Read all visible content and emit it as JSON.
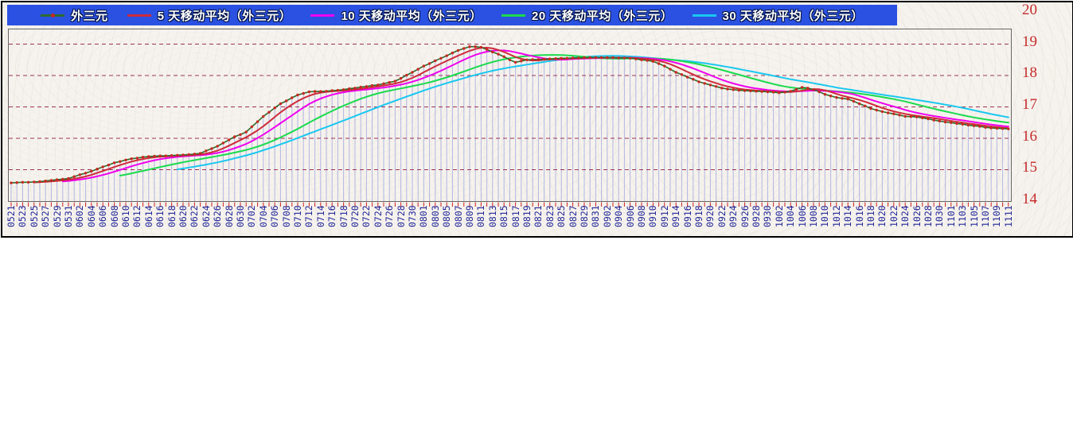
{
  "window": {
    "background": "#ffffff",
    "chart_border": "#000000"
  },
  "legend": {
    "background": "#2b51e2",
    "text_color": "#ffffff"
  },
  "axes": {
    "y_label_color": "#c42b2b",
    "x_label_color": "#22279a",
    "frame_color": "#666666",
    "gridline_color": "#993355",
    "dropline_color": "#b3b6e3",
    "tick_color": "#cc2222"
  },
  "chart_data": {
    "type": "line",
    "title": "",
    "xlabel": "",
    "ylabel": "",
    "ylim": [
      14,
      20
    ],
    "grid": "horizontal-dashed",
    "legend_position": "top",
    "y_tick_labels": [
      "20",
      "19",
      "18",
      "17",
      "16",
      "15",
      "14"
    ],
    "x_tick_labels": [
      "0521",
      "0523",
      "0525",
      "0527",
      "0529",
      "0531",
      "0602",
      "0604",
      "0606",
      "0608",
      "0610",
      "0612",
      "0614",
      "0616",
      "0618",
      "0620",
      "0622",
      "0624",
      "0626",
      "0628",
      "0630",
      "0702",
      "0704",
      "0706",
      "0708",
      "0710",
      "0712",
      "0714",
      "0716",
      "0718",
      "0720",
      "0722",
      "0724",
      "0726",
      "0728",
      "0730",
      "0801",
      "0803",
      "0805",
      "0807",
      "0809",
      "0811",
      "0813",
      "0815",
      "0817",
      "0819",
      "0821",
      "0823",
      "0825",
      "0827",
      "0829",
      "0831",
      "0902",
      "0904",
      "0906",
      "0908",
      "0910",
      "0912",
      "0914",
      "0916",
      "0918",
      "0920",
      "0922",
      "0924",
      "0926",
      "0928",
      "0930",
      "1002",
      "1004",
      "1006",
      "1008",
      "1010",
      "1012",
      "1014",
      "1016",
      "1018",
      "1020",
      "1022",
      "1024",
      "1026",
      "1028",
      "1030",
      "1101",
      "1103",
      "1105",
      "1107",
      "1109",
      "1111"
    ],
    "x_points_per_label": 2,
    "series": [
      {
        "name": "外三元",
        "color": "#2e6b2e",
        "marker": "dot",
        "marker_color": "#c8281e",
        "values": [
          14.58,
          14.59,
          14.6,
          14.6,
          14.61,
          14.62,
          14.64,
          14.66,
          14.68,
          14.7,
          14.72,
          14.78,
          14.84,
          14.89,
          14.95,
          15.02,
          15.09,
          15.15,
          15.22,
          15.26,
          15.31,
          15.35,
          15.37,
          15.4,
          15.42,
          15.43,
          15.44,
          15.44,
          15.45,
          15.46,
          15.47,
          15.48,
          15.5,
          15.52,
          15.6,
          15.67,
          15.75,
          15.85,
          15.95,
          16.05,
          16.12,
          16.2,
          16.37,
          16.53,
          16.7,
          16.83,
          16.97,
          17.1,
          17.19,
          17.29,
          17.38,
          17.43,
          17.48,
          17.49,
          17.49,
          17.5,
          17.52,
          17.53,
          17.55,
          17.58,
          17.6,
          17.63,
          17.65,
          17.68,
          17.7,
          17.74,
          17.78,
          17.82,
          17.91,
          18.01,
          18.1,
          18.2,
          18.3,
          18.38,
          18.47,
          18.55,
          18.63,
          18.72,
          18.8,
          18.86,
          18.92,
          18.92,
          18.9,
          18.83,
          18.75,
          18.68,
          18.6,
          18.5,
          18.42,
          18.46,
          18.5,
          18.51,
          18.51,
          18.52,
          18.53,
          18.54,
          18.55,
          18.55,
          18.56,
          18.56,
          18.57,
          18.57,
          18.57,
          18.57,
          18.57,
          18.57,
          18.56,
          18.56,
          18.55,
          18.53,
          18.5,
          18.48,
          18.45,
          18.38,
          18.3,
          18.2,
          18.1,
          18.03,
          17.95,
          17.88,
          17.8,
          17.75,
          17.7,
          17.65,
          17.6,
          17.57,
          17.55,
          17.53,
          17.52,
          17.51,
          17.5,
          17.49,
          17.48,
          17.47,
          17.45,
          17.47,
          17.5,
          17.56,
          17.62,
          17.6,
          17.55,
          17.48,
          17.4,
          17.35,
          17.3,
          17.27,
          17.25,
          17.18,
          17.1,
          17.03,
          16.95,
          16.9,
          16.85,
          16.81,
          16.78,
          16.74,
          16.7,
          16.69,
          16.68,
          16.65,
          16.62,
          16.58,
          16.55,
          16.52,
          16.5,
          16.47,
          16.45,
          16.42,
          16.4,
          16.38,
          16.35,
          16.33,
          16.32,
          16.31,
          16.3
        ]
      },
      {
        "name": "5 天移动平均（外三元）",
        "color": "#ce2b3b",
        "derived": "moving_average",
        "window": 5
      },
      {
        "name": "10 天移动平均（外三元）",
        "color": "#ef00ef",
        "derived": "moving_average",
        "window": 10
      },
      {
        "name": "20 天移动平均（外三元）",
        "color": "#1adb4d",
        "derived": "moving_average",
        "window": 20
      },
      {
        "name": "30 天移动平均（外三元）",
        "color": "#19c8f0",
        "derived": "moving_average",
        "window": 30
      }
    ]
  }
}
